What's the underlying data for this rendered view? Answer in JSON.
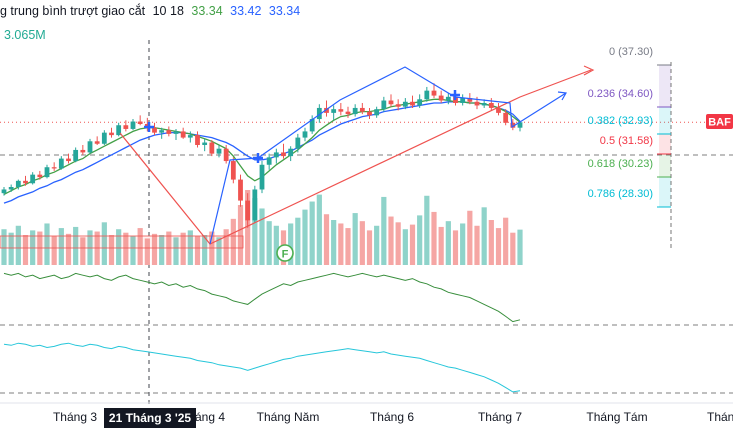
{
  "legend": {
    "indicator_name": "g trung bình trượt giao cắt",
    "params": "10 18",
    "value_1": "33.34",
    "value_2": "33.42",
    "value_3": "33.34",
    "volume_value": "3.065M"
  },
  "colors": {
    "up": "#26a69a",
    "down": "#ef5350",
    "ma_fast": "#43a047",
    "ma_slow": "#2962ff",
    "zigzag": "#ef5350",
    "wave": "#2962ff",
    "line_green": "#388e3c",
    "line_cyan": "#26c6da",
    "symbol_badge": "#f23645"
  },
  "time_axis": {
    "labels": [
      "Tháng 3",
      "Tháng 4",
      "Tháng Năm",
      "Tháng 6",
      "Tháng 7",
      "Tháng Tám",
      "Tháng"
    ],
    "crosshair_label": "21 Tháng 3 '25"
  },
  "symbol_badge": "BAF",
  "event_marker": "F",
  "chart_data": {
    "type": "candlestick",
    "title": "",
    "fib_levels": [
      {
        "ratio": "0",
        "price": "(37.30)",
        "color": "#787b86"
      },
      {
        "ratio": "0.236",
        "price": "(34.60)",
        "color": "#7e57c2"
      },
      {
        "ratio": "0.382",
        "price": "(32.93)",
        "color": "#00bcd4"
      },
      {
        "ratio": "0.5",
        "price": "(31.58)",
        "color": "#f23645"
      },
      {
        "ratio": "0.618",
        "price": "(30.23)",
        "color": "#4caf50"
      },
      {
        "ratio": "0.786",
        "price": "(28.30)",
        "color": "#00bcd4"
      }
    ],
    "price_range": [
      23,
      40
    ],
    "candles": [
      [
        27.6,
        28.1,
        27.4,
        27.9
      ],
      [
        27.9,
        28.3,
        27.7,
        28.1
      ],
      [
        28.1,
        28.7,
        27.9,
        28.6
      ],
      [
        28.6,
        29.0,
        28.2,
        28.4
      ],
      [
        28.4,
        29.3,
        28.3,
        29.1
      ],
      [
        29.1,
        29.4,
        28.7,
        28.9
      ],
      [
        28.9,
        29.9,
        28.8,
        29.7
      ],
      [
        29.7,
        30.1,
        29.4,
        29.6
      ],
      [
        29.6,
        30.6,
        29.5,
        30.4
      ],
      [
        30.4,
        30.8,
        30.0,
        30.2
      ],
      [
        30.2,
        31.3,
        30.1,
        31.1
      ],
      [
        31.1,
        31.5,
        30.7,
        30.9
      ],
      [
        30.9,
        32.0,
        30.8,
        31.8
      ],
      [
        31.8,
        32.2,
        31.5,
        31.6
      ],
      [
        31.6,
        32.7,
        31.5,
        32.5
      ],
      [
        32.5,
        32.9,
        32.1,
        32.3
      ],
      [
        32.3,
        33.3,
        32.2,
        33.1
      ],
      [
        33.1,
        33.5,
        32.6,
        32.8
      ],
      [
        32.8,
        33.6,
        32.7,
        33.4
      ],
      [
        33.4,
        33.9,
        33.1,
        33.2
      ],
      [
        33.2,
        33.7,
        32.6,
        32.9
      ],
      [
        32.9,
        33.3,
        32.3,
        32.5
      ],
      [
        32.5,
        32.9,
        32.0,
        32.7
      ],
      [
        32.7,
        33.0,
        32.2,
        32.4
      ],
      [
        32.4,
        32.8,
        31.9,
        32.6
      ],
      [
        32.6,
        32.9,
        32.0,
        32.1
      ],
      [
        32.1,
        32.6,
        31.7,
        32.3
      ],
      [
        32.3,
        32.6,
        31.3,
        31.5
      ],
      [
        31.5,
        32.0,
        31.0,
        31.7
      ],
      [
        31.7,
        31.9,
        30.6,
        30.8
      ],
      [
        30.8,
        31.5,
        30.5,
        31.2
      ],
      [
        31.2,
        31.5,
        30.0,
        30.2
      ],
      [
        30.2,
        30.5,
        28.4,
        28.7
      ],
      [
        28.7,
        29.1,
        26.5,
        27.0
      ],
      [
        27.0,
        27.6,
        24.8,
        25.4
      ],
      [
        25.4,
        28.2,
        25.2,
        27.9
      ],
      [
        27.9,
        30.2,
        27.6,
        29.9
      ],
      [
        29.9,
        30.8,
        29.5,
        30.5
      ],
      [
        30.5,
        31.2,
        30.0,
        30.9
      ],
      [
        30.9,
        31.6,
        30.4,
        30.6
      ],
      [
        30.6,
        31.4,
        30.2,
        31.2
      ],
      [
        31.2,
        32.4,
        30.9,
        32.1
      ],
      [
        32.1,
        32.9,
        31.8,
        32.6
      ],
      [
        32.6,
        33.9,
        32.4,
        33.6
      ],
      [
        33.6,
        34.8,
        33.3,
        34.5
      ],
      [
        34.5,
        35.1,
        33.8,
        34.1
      ],
      [
        34.1,
        34.7,
        33.5,
        34.4
      ],
      [
        34.4,
        34.9,
        33.9,
        34.2
      ],
      [
        34.2,
        34.6,
        33.7,
        34.0
      ],
      [
        34.0,
        34.8,
        33.8,
        34.5
      ],
      [
        34.5,
        34.9,
        34.0,
        34.2
      ],
      [
        34.2,
        34.5,
        33.6,
        33.9
      ],
      [
        33.9,
        34.6,
        33.7,
        34.4
      ],
      [
        34.4,
        35.4,
        34.2,
        35.1
      ],
      [
        35.1,
        35.6,
        34.6,
        34.8
      ],
      [
        34.8,
        35.2,
        34.3,
        34.6
      ],
      [
        34.6,
        35.3,
        34.4,
        35.0
      ],
      [
        35.0,
        35.5,
        34.5,
        34.7
      ],
      [
        34.7,
        35.6,
        34.5,
        35.2
      ],
      [
        35.2,
        36.2,
        35.0,
        35.9
      ],
      [
        35.9,
        36.5,
        35.3,
        35.5
      ],
      [
        35.5,
        35.9,
        34.9,
        35.1
      ],
      [
        35.1,
        35.7,
        34.8,
        35.4
      ],
      [
        35.4,
        35.8,
        34.7,
        34.9
      ],
      [
        34.9,
        35.6,
        34.7,
        35.3
      ],
      [
        35.3,
        35.7,
        34.8,
        35.0
      ],
      [
        35.0,
        35.4,
        34.4,
        34.7
      ],
      [
        34.7,
        35.2,
        34.5,
        34.9
      ],
      [
        34.9,
        35.3,
        34.3,
        34.5
      ],
      [
        34.5,
        34.9,
        33.9,
        34.1
      ],
      [
        34.1,
        34.4,
        33.1,
        33.3
      ],
      [
        33.3,
        33.6,
        32.7,
        32.9
      ],
      [
        32.9,
        33.4,
        32.6,
        33.34
      ]
    ],
    "volumes": [
      3.1,
      2.8,
      3.4,
      2.6,
      3.0,
      2.9,
      3.6,
      2.5,
      3.2,
      2.7,
      3.3,
      2.4,
      3.0,
      2.9,
      3.7,
      2.6,
      3.1,
      2.8,
      2.5,
      3.2,
      2.3,
      2.7,
      2.6,
      2.9,
      2.4,
      2.8,
      3.0,
      2.5,
      2.6,
      2.9,
      2.4,
      3.1,
      4.0,
      5.2,
      6.5,
      5.8,
      4.9,
      3.8,
      3.4,
      3.0,
      3.6,
      4.1,
      4.8,
      5.5,
      6.1,
      4.4,
      3.9,
      3.6,
      3.2,
      4.5,
      3.8,
      3.0,
      3.4,
      5.9,
      4.2,
      3.7,
      3.1,
      3.5,
      4.3,
      6.0,
      4.6,
      3.3,
      3.8,
      3.0,
      3.6,
      4.7,
      3.4,
      5.0,
      3.9,
      3.2,
      4.1,
      2.8,
      3.065
    ],
    "ma_fast": [
      27.5,
      27.8,
      28.1,
      28.3,
      28.6,
      28.8,
      29.1,
      29.3,
      29.6,
      29.9,
      30.2,
      30.4,
      30.8,
      31.1,
      31.4,
      31.7,
      32.0,
      32.3,
      32.6,
      32.8,
      32.9,
      32.9,
      32.8,
      32.7,
      32.6,
      32.5,
      32.4,
      32.2,
      32.0,
      31.8,
      31.5,
      31.2,
      30.6,
      29.8,
      29.0,
      28.6,
      28.9,
      29.4,
      29.9,
      30.3,
      30.7,
      31.1,
      31.6,
      32.1,
      32.7,
      33.1,
      33.5,
      33.8,
      33.9,
      34.1,
      34.2,
      34.2,
      34.3,
      34.4,
      34.6,
      34.7,
      34.8,
      34.9,
      35.0,
      35.1,
      35.2,
      35.2,
      35.1,
      35.0,
      35.0,
      34.9,
      34.9,
      34.8,
      34.7,
      34.5,
      34.2,
      33.8,
      33.34
    ],
    "ma_slow": [
      26.8,
      27.0,
      27.3,
      27.5,
      27.7,
      28.0,
      28.2,
      28.5,
      28.7,
      29.0,
      29.3,
      29.5,
      29.8,
      30.1,
      30.4,
      30.7,
      31.0,
      31.3,
      31.6,
      31.9,
      32.1,
      32.3,
      32.4,
      32.5,
      32.5,
      32.5,
      32.4,
      32.3,
      32.2,
      32.1,
      31.9,
      31.7,
      31.4,
      31.0,
      30.6,
      30.3,
      30.3,
      30.4,
      30.6,
      30.8,
      31.0,
      31.3,
      31.6,
      31.9,
      32.3,
      32.6,
      32.9,
      33.2,
      33.4,
      33.6,
      33.8,
      33.9,
      34.0,
      34.2,
      34.3,
      34.4,
      34.5,
      34.6,
      34.7,
      34.8,
      34.9,
      34.9,
      35.0,
      35.0,
      35.0,
      34.9,
      34.9,
      34.8,
      34.7,
      34.5,
      34.3,
      34.0,
      33.42
    ],
    "osc_green": [
      58,
      57,
      58,
      56,
      57,
      55,
      56,
      57,
      55,
      56,
      58,
      57,
      56,
      57,
      55,
      54,
      56,
      57,
      55,
      54,
      53,
      52,
      53,
      51,
      52,
      50,
      51,
      49,
      48,
      46,
      45,
      44,
      42,
      41,
      40,
      43,
      46,
      48,
      50,
      52,
      51,
      53,
      54,
      55,
      56,
      57,
      58,
      57,
      56,
      57,
      58,
      57,
      56,
      57,
      56,
      55,
      54,
      55,
      53,
      52,
      50,
      49,
      47,
      46,
      45,
      44,
      42,
      40,
      38,
      36,
      33,
      30,
      31
    ],
    "osc_cyan": [
      55,
      54,
      56,
      55,
      53,
      54,
      52,
      53,
      55,
      56,
      54,
      53,
      55,
      54,
      52,
      51,
      53,
      52,
      50,
      49,
      48,
      47,
      46,
      45,
      44,
      43,
      42,
      40,
      39,
      38,
      36,
      35,
      34,
      33,
      31,
      33,
      35,
      37,
      39,
      41,
      42,
      44,
      45,
      46,
      47,
      48,
      49,
      50,
      51,
      50,
      49,
      48,
      47,
      48,
      46,
      45,
      44,
      43,
      42,
      40,
      38,
      36,
      34,
      33,
      31,
      29,
      27,
      25,
      22,
      19,
      15,
      11,
      12
    ]
  }
}
